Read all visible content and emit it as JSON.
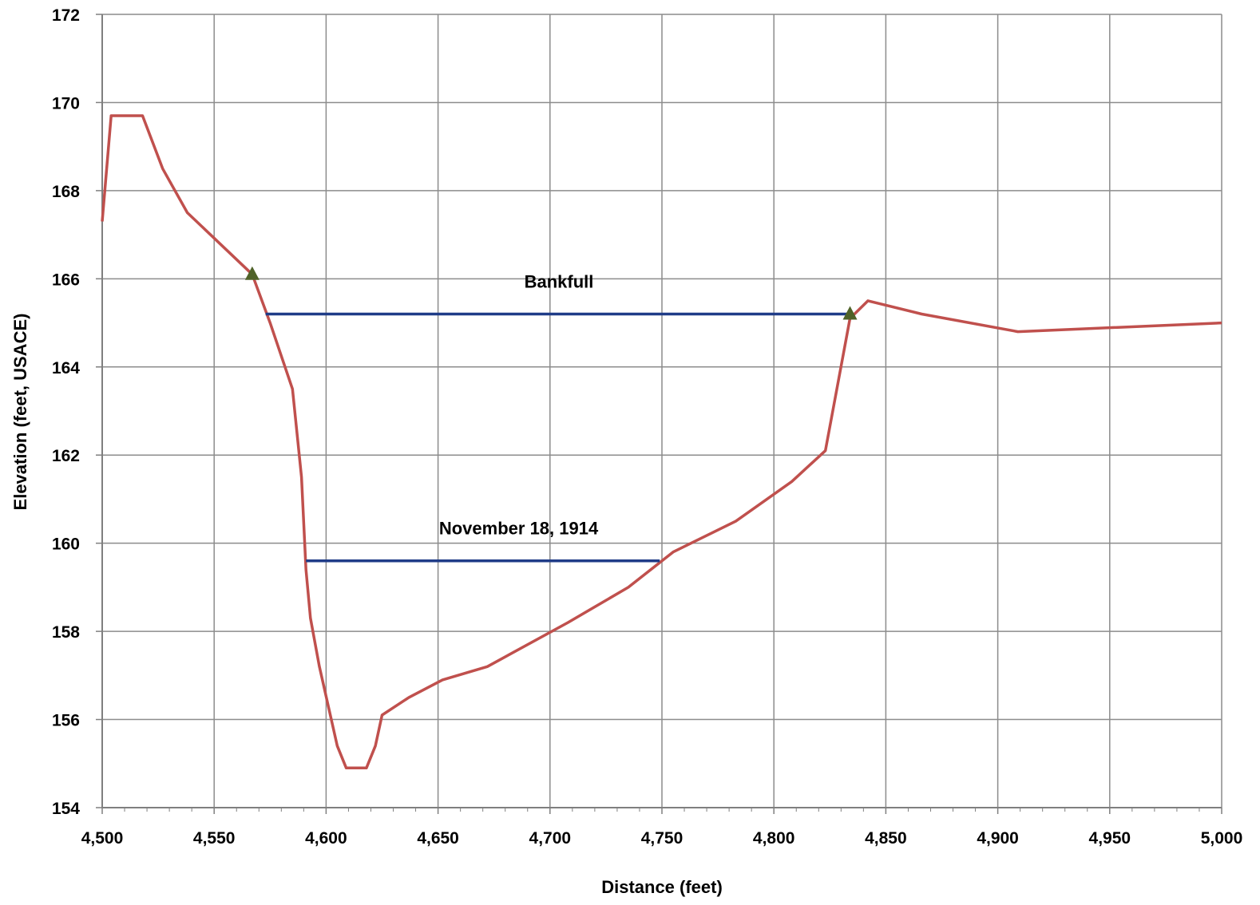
{
  "chart_data": {
    "type": "line",
    "title": "",
    "xlabel": "Distance (feet)",
    "ylabel": "Elevation (feet, USACE)",
    "xlim": [
      4500,
      5000
    ],
    "ylim": [
      154,
      172
    ],
    "xticks": [
      4500,
      4550,
      4600,
      4650,
      4700,
      4750,
      4800,
      4850,
      4900,
      4950,
      5000
    ],
    "xtick_labels": [
      "4,500",
      "4,550",
      "4,600",
      "4,650",
      "4,700",
      "4,750",
      "4,800",
      "4,850",
      "4,900",
      "4,950",
      "5,000"
    ],
    "yticks": [
      154,
      156,
      158,
      160,
      162,
      164,
      166,
      168,
      170,
      172
    ],
    "ytick_labels": [
      "154",
      "156",
      "158",
      "160",
      "162",
      "164",
      "166",
      "168",
      "170",
      "172"
    ],
    "grid": true,
    "series": [
      {
        "color": "#C0504D",
        "x": [
          4500,
          4504,
          4518,
          4527,
          4538,
          4567,
          4575,
          4585,
          4589,
          4591,
          4593,
          4597,
          4601,
          4605,
          4609,
          4618,
          4622,
          4625,
          4637,
          4652,
          4672,
          4708,
          4735,
          4755,
          4783,
          4808,
          4823,
          4834,
          4842,
          4866,
          4909,
          5000
        ],
        "y": [
          167.3,
          169.7,
          169.7,
          168.5,
          167.5,
          166.1,
          165.0,
          163.5,
          161.5,
          159.4,
          158.3,
          157.2,
          156.3,
          155.4,
          154.9,
          154.9,
          155.4,
          156.1,
          156.5,
          156.9,
          157.2,
          158.2,
          159.0,
          159.8,
          160.5,
          161.4,
          162.1,
          165.1,
          165.5,
          165.2,
          164.8,
          165.0
        ]
      },
      {
        "color": "#1F3C88",
        "x": [
          4573,
          4834
        ],
        "y": [
          165.2,
          165.2
        ]
      },
      {
        "color": "#1F3C88",
        "x": [
          4591,
          4749
        ],
        "y": [
          159.6,
          159.6
        ]
      }
    ],
    "markers": {
      "color": "#4F6228",
      "x": [
        4567,
        4834
      ],
      "y": [
        166.1,
        165.2
      ]
    },
    "annotations": [
      {
        "text": "Bankfull",
        "x": 4704,
        "y": 165.8
      },
      {
        "text": "November 18, 1914",
        "x": 4686,
        "y": 160.2
      }
    ],
    "legend": "none"
  }
}
